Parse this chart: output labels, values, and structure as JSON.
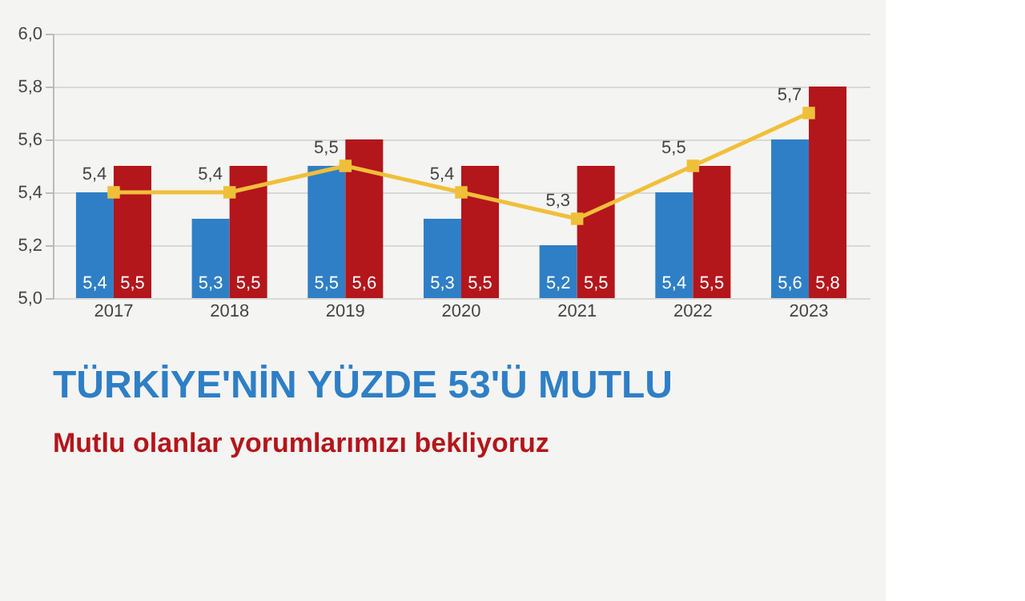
{
  "chart_data": {
    "type": "bar",
    "categories": [
      "2017",
      "2018",
      "2019",
      "2020",
      "2021",
      "2022",
      "2023"
    ],
    "series": [
      {
        "color": "#2f7fc6",
        "values": [
          5.4,
          5.3,
          5.5,
          5.3,
          5.2,
          5.4,
          5.6
        ],
        "value_labels": [
          "5,4",
          "5,3",
          "5,5",
          "5,3",
          "5,2",
          "5,4",
          "5,6"
        ]
      },
      {
        "color": "#b3161b",
        "values": [
          5.5,
          5.5,
          5.6,
          5.5,
          5.5,
          5.5,
          5.8
        ],
        "value_labels": [
          "5,5",
          "5,5",
          "5,6",
          "5,5",
          "5,5",
          "5,5",
          "5,8"
        ]
      },
      {
        "type": "line",
        "color": "#f0bf3a",
        "marker": "square",
        "values": [
          5.4,
          5.4,
          5.5,
          5.4,
          5.3,
          5.5,
          5.7
        ],
        "value_labels": [
          "5,4",
          "5,4",
          "5,5",
          "5,4",
          "5,3",
          "5,5",
          "5,7"
        ]
      }
    ],
    "ylim": [
      5.0,
      6.0
    ],
    "yticks": [
      {
        "value": 5.0,
        "label": "5,0"
      },
      {
        "value": 5.2,
        "label": "5,2"
      },
      {
        "value": 5.4,
        "label": "5,4"
      },
      {
        "value": 5.6,
        "label": "5,6"
      },
      {
        "value": 5.8,
        "label": "5,8"
      },
      {
        "value": 6.0,
        "label": "6,0"
      }
    ],
    "grid": "y",
    "annotations": [
      "TÜRKİYE'NİN YÜZDE 53'Ü MUTLU",
      "Mutlu olanlar yorumlarımızı bekliyoruz"
    ]
  }
}
